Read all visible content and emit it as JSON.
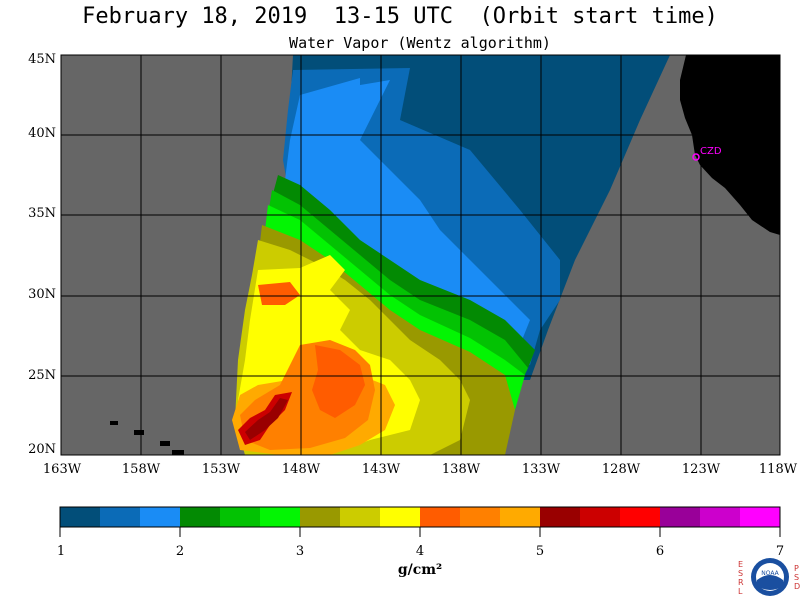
{
  "title": "February 18, 2019  13-15 UTC  (Orbit start time)",
  "subtitle": "Water Vapor (Wentz algorithm)",
  "lat_labels": [
    "45N",
    "40N",
    "35N",
    "30N",
    "25N",
    "20N"
  ],
  "lon_labels": [
    "163W",
    "158W",
    "153W",
    "148W",
    "143W",
    "138W",
    "133W",
    "128W",
    "123W",
    "118W"
  ],
  "colorbar": {
    "colors": [
      "#024e79",
      "#0b6bb7",
      "#1a8cf5",
      "#038a03",
      "#03c203",
      "#03f503",
      "#999900",
      "#cccc00",
      "#ffff00",
      "#ff5c00",
      "#ff8000",
      "#ffaa00",
      "#990000",
      "#cc0000",
      "#ff0000",
      "#990099",
      "#cc00cc",
      "#ff00ff"
    ],
    "tick_labels": [
      "1",
      "2",
      "3",
      "4",
      "5",
      "6",
      "7"
    ],
    "unit": "g/cm²"
  },
  "station_label": "CZD",
  "logo": {
    "left_letters": "ESRL",
    "right_letters": "PSD",
    "text": "NOAA"
  },
  "colors": {
    "land": "#000000",
    "no_data": "#666666",
    "grid": "#000000",
    "station": "#ff00ff"
  }
}
